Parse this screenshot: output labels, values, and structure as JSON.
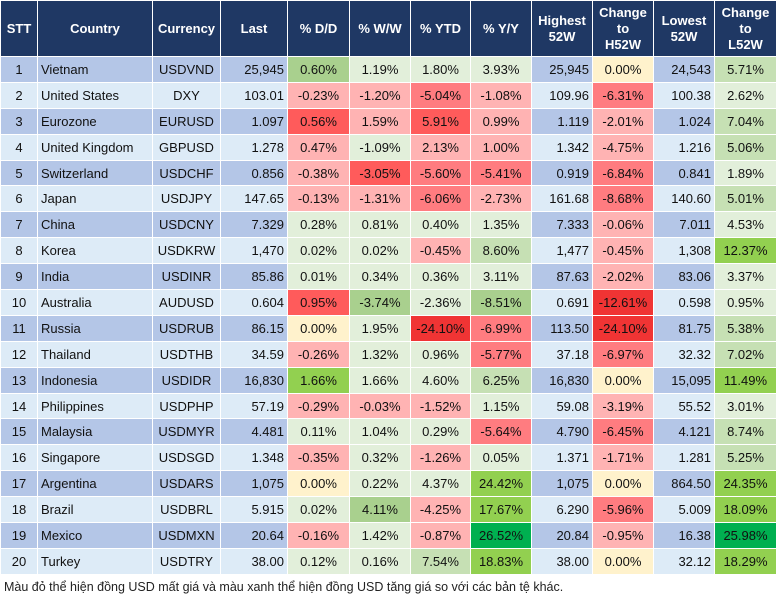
{
  "headers": [
    "STT",
    "Country",
    "Currency",
    "Last",
    "% D/D",
    "% W/W",
    "% YTD",
    "% Y/Y",
    "Highest\n52W",
    "Change\nto\nH52W",
    "Lowest\n52W",
    "Change\nto\nL52W"
  ],
  "tone_colors": {
    "G3": "#00b050",
    "G2": "#92d050",
    "G1": "#a9d08e",
    "G0": "#c6e0b4",
    "g": "#e2efda",
    "y": "#fff2cc",
    "r0": "#ffb3b3",
    "R1": "#ff7c80",
    "R2": "#ff5b5b",
    "R3": "#f03434"
  },
  "rows": [
    [
      "1",
      "Vietnam",
      "USDVND",
      "25,945",
      "0.60%",
      "1.19%",
      "1.80%",
      "3.93%",
      "25,945",
      "0.00%",
      "24,543",
      "5.71%"
    ],
    [
      "2",
      "United States",
      "DXY",
      "103.01",
      "-0.23%",
      "-1.20%",
      "-5.04%",
      "-1.08%",
      "109.96",
      "-6.31%",
      "100.38",
      "2.62%"
    ],
    [
      "3",
      "Eurozone",
      "EURUSD",
      "1.097",
      "0.56%",
      "1.59%",
      "5.91%",
      "0.99%",
      "1.119",
      "-2.01%",
      "1.024",
      "7.04%"
    ],
    [
      "4",
      "United Kingdom",
      "GBPUSD",
      "1.278",
      "0.47%",
      "-1.09%",
      "2.13%",
      "1.00%",
      "1.342",
      "-4.75%",
      "1.216",
      "5.06%"
    ],
    [
      "5",
      "Switzerland",
      "USDCHF",
      "0.856",
      "-0.38%",
      "-3.05%",
      "-5.60%",
      "-5.41%",
      "0.919",
      "-6.84%",
      "0.841",
      "1.89%"
    ],
    [
      "6",
      "Japan",
      "USDJPY",
      "147.65",
      "-0.13%",
      "-1.31%",
      "-6.06%",
      "-2.73%",
      "161.68",
      "-8.68%",
      "140.60",
      "5.01%"
    ],
    [
      "7",
      "China",
      "USDCNY",
      "7.329",
      "0.28%",
      "0.81%",
      "0.40%",
      "1.35%",
      "7.333",
      "-0.06%",
      "7.011",
      "4.53%"
    ],
    [
      "8",
      "Korea",
      "USDKRW",
      "1,470",
      "0.02%",
      "0.02%",
      "-0.45%",
      "8.60%",
      "1,477",
      "-0.45%",
      "1,308",
      "12.37%"
    ],
    [
      "9",
      "India",
      "USDINR",
      "85.86",
      "0.01%",
      "0.34%",
      "0.36%",
      "3.11%",
      "87.63",
      "-2.02%",
      "83.06",
      "3.37%"
    ],
    [
      "10",
      "Australia",
      "AUDUSD",
      "0.604",
      "0.95%",
      "-3.74%",
      "-2.36%",
      "-8.51%",
      "0.691",
      "-12.61%",
      "0.598",
      "0.95%"
    ],
    [
      "11",
      "Russia",
      "USDRUB",
      "86.15",
      "0.00%",
      "1.95%",
      "-24.10%",
      "-6.99%",
      "113.50",
      "-24.10%",
      "81.75",
      "5.38%"
    ],
    [
      "12",
      "Thailand",
      "USDTHB",
      "34.59",
      "-0.26%",
      "1.32%",
      "0.96%",
      "-5.77%",
      "37.18",
      "-6.97%",
      "32.32",
      "7.02%"
    ],
    [
      "13",
      "Indonesia",
      "USDIDR",
      "16,830",
      "1.66%",
      "1.66%",
      "4.60%",
      "6.25%",
      "16,830",
      "0.00%",
      "15,095",
      "11.49%"
    ],
    [
      "14",
      "Philippines",
      "USDPHP",
      "57.19",
      "-0.29%",
      "-0.03%",
      "-1.52%",
      "1.15%",
      "59.08",
      "-3.19%",
      "55.52",
      "3.01%"
    ],
    [
      "15",
      "Malaysia",
      "USDMYR",
      "4.481",
      "0.11%",
      "1.04%",
      "0.29%",
      "-5.64%",
      "4.790",
      "-6.45%",
      "4.121",
      "8.74%"
    ],
    [
      "16",
      "Singapore",
      "USDSGD",
      "1.348",
      "-0.35%",
      "0.32%",
      "-1.26%",
      "0.05%",
      "1.371",
      "-1.71%",
      "1.281",
      "5.25%"
    ],
    [
      "17",
      "Argentina",
      "USDARS",
      "1,075",
      "0.00%",
      "0.22%",
      "4.37%",
      "24.42%",
      "1,075",
      "0.00%",
      "864.50",
      "24.35%"
    ],
    [
      "18",
      "Brazil",
      "USDBRL",
      "5.915",
      "0.02%",
      "4.11%",
      "-4.25%",
      "17.67%",
      "6.290",
      "-5.96%",
      "5.009",
      "18.09%"
    ],
    [
      "19",
      "Mexico",
      "USDMXN",
      "20.64",
      "-0.16%",
      "1.42%",
      "-0.87%",
      "26.52%",
      "20.84",
      "-0.95%",
      "16.38",
      "25.98%"
    ],
    [
      "20",
      "Turkey",
      "USDTRY",
      "38.00",
      "0.12%",
      "0.16%",
      "7.54%",
      "18.83%",
      "38.00",
      "0.00%",
      "32.12",
      "18.29%"
    ]
  ],
  "tones": [
    [
      "G1",
      "g",
      "g",
      "g",
      "y",
      "G0"
    ],
    [
      "r0",
      "r0",
      "R1",
      "r0",
      "R1",
      "g"
    ],
    [
      "R2",
      "r0",
      "R2",
      "r0",
      "r0",
      "G0"
    ],
    [
      "r0",
      "g",
      "r0",
      "r0",
      "r0",
      "G0"
    ],
    [
      "r0",
      "R2",
      "R1",
      "R1",
      "R1",
      "g"
    ],
    [
      "r0",
      "r0",
      "R1",
      "r0",
      "R1",
      "G0"
    ],
    [
      "g",
      "g",
      "g",
      "g",
      "r0",
      "g"
    ],
    [
      "g",
      "g",
      "r0",
      "G0",
      "r0",
      "G2"
    ],
    [
      "g",
      "g",
      "g",
      "g",
      "r0",
      "g"
    ],
    [
      "R2",
      "G1",
      "g",
      "G1",
      "R3",
      "g"
    ],
    [
      "y",
      "g",
      "R3",
      "R1",
      "R3",
      "G0"
    ],
    [
      "r0",
      "g",
      "g",
      "R1",
      "R1",
      "G0"
    ],
    [
      "G2",
      "g",
      "g",
      "G0",
      "y",
      "G2"
    ],
    [
      "r0",
      "r0",
      "r0",
      "g",
      "r0",
      "g"
    ],
    [
      "g",
      "g",
      "g",
      "R1",
      "R1",
      "G0"
    ],
    [
      "r0",
      "g",
      "r0",
      "g",
      "r0",
      "G0"
    ],
    [
      "y",
      "g",
      "g",
      "G2",
      "y",
      "G2"
    ],
    [
      "g",
      "G1",
      "r0",
      "G2",
      "R1",
      "G2"
    ],
    [
      "r0",
      "g",
      "r0",
      "G3",
      "r0",
      "G3"
    ],
    [
      "g",
      "g",
      "G0",
      "G2",
      "y",
      "G2"
    ]
  ],
  "note": "Màu đỏ thể hiện đồng USD mất giá và màu xanh thể hiện đồng USD tăng giá so với các bản tệ khác."
}
